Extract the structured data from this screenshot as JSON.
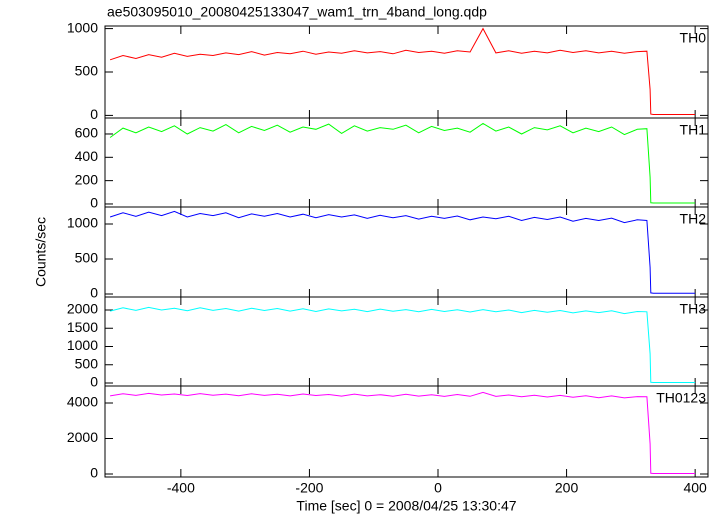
{
  "chart_data": [
    {
      "type": "line",
      "title": "ae503095010_20080425133047_wam1_trn_4band_long.qdp",
      "x": [
        -510,
        -490,
        -470,
        -450,
        -430,
        -410,
        -390,
        -370,
        -350,
        -330,
        -310,
        -290,
        -270,
        -250,
        -230,
        -210,
        -190,
        -170,
        -150,
        -130,
        -110,
        -90,
        -70,
        -50,
        -30,
        -10,
        10,
        30,
        50,
        70,
        90,
        110,
        130,
        150,
        170,
        190,
        210,
        230,
        250,
        270,
        290,
        310,
        325,
        330,
        331,
        335,
        400
      ],
      "series": [
        {
          "name": "TH0",
          "color": "#ff0000",
          "values": [
            640,
            690,
            655,
            700,
            670,
            715,
            680,
            705,
            690,
            720,
            700,
            735,
            695,
            725,
            710,
            740,
            705,
            730,
            715,
            745,
            720,
            735,
            710,
            750,
            725,
            740,
            715,
            745,
            730,
            1000,
            720,
            745,
            715,
            740,
            720,
            750,
            725,
            745,
            720,
            740,
            715,
            735,
            740,
            300,
            15,
            10,
            10
          ]
        }
      ],
      "xlim": [
        -518,
        420
      ],
      "ylim": [
        -30,
        1030
      ],
      "yticks": [
        0,
        500,
        1000
      ]
    },
    {
      "type": "line",
      "x": [
        -510,
        -490,
        -470,
        -450,
        -430,
        -410,
        -390,
        -370,
        -350,
        -330,
        -310,
        -290,
        -270,
        -250,
        -230,
        -210,
        -190,
        -170,
        -150,
        -130,
        -110,
        -90,
        -70,
        -50,
        -30,
        -10,
        10,
        30,
        50,
        70,
        90,
        110,
        130,
        150,
        170,
        190,
        210,
        230,
        250,
        270,
        290,
        310,
        325,
        330,
        331,
        335,
        400
      ],
      "series": [
        {
          "name": "TH1",
          "color": "#00ff00",
          "values": [
            570,
            650,
            610,
            660,
            620,
            670,
            600,
            655,
            625,
            680,
            610,
            665,
            630,
            675,
            615,
            660,
            640,
            685,
            605,
            670,
            625,
            655,
            640,
            675,
            610,
            665,
            630,
            650,
            615,
            690,
            625,
            660,
            600,
            655,
            635,
            670,
            610,
            650,
            620,
            660,
            595,
            640,
            645,
            230,
            10,
            8,
            8
          ]
        }
      ],
      "xlim": [
        -518,
        420
      ],
      "ylim": [
        -26,
        737
      ],
      "yticks": [
        0,
        200,
        400,
        600
      ]
    },
    {
      "type": "line",
      "ylabel": "Counts/sec",
      "x": [
        -510,
        -490,
        -470,
        -450,
        -430,
        -410,
        -390,
        -370,
        -350,
        -330,
        -310,
        -290,
        -270,
        -250,
        -230,
        -210,
        -190,
        -170,
        -150,
        -130,
        -110,
        -90,
        -70,
        -50,
        -30,
        -10,
        10,
        30,
        50,
        70,
        90,
        110,
        130,
        150,
        170,
        190,
        210,
        230,
        250,
        270,
        290,
        310,
        325,
        330,
        331,
        335,
        400
      ],
      "series": [
        {
          "name": "TH2",
          "color": "#0000ff",
          "values": [
            1100,
            1160,
            1110,
            1170,
            1120,
            1180,
            1100,
            1150,
            1120,
            1160,
            1090,
            1145,
            1110,
            1150,
            1100,
            1140,
            1090,
            1135,
            1100,
            1130,
            1080,
            1125,
            1090,
            1120,
            1070,
            1110,
            1080,
            1115,
            1060,
            1100,
            1075,
            1110,
            1050,
            1095,
            1065,
            1100,
            1040,
            1080,
            1050,
            1085,
            1020,
            1060,
            1050,
            380,
            15,
            10,
            10
          ]
        }
      ],
      "xlim": [
        -518,
        420
      ],
      "ylim": [
        -43,
        1243
      ],
      "yticks": [
        0,
        500,
        1000
      ]
    },
    {
      "type": "line",
      "x": [
        -510,
        -490,
        -470,
        -450,
        -430,
        -410,
        -390,
        -370,
        -350,
        -330,
        -310,
        -290,
        -270,
        -250,
        -230,
        -210,
        -190,
        -170,
        -150,
        -130,
        -110,
        -90,
        -70,
        -50,
        -30,
        -10,
        10,
        30,
        50,
        70,
        90,
        110,
        130,
        150,
        170,
        190,
        210,
        230,
        250,
        270,
        290,
        310,
        325,
        330,
        331,
        335,
        400
      ],
      "series": [
        {
          "name": "TH3",
          "color": "#00ffff",
          "values": [
            1970,
            2060,
            1990,
            2070,
            2000,
            2050,
            1980,
            2060,
            1990,
            2040,
            1970,
            2050,
            1985,
            2040,
            1970,
            2035,
            1960,
            2030,
            1975,
            2020,
            1955,
            2025,
            1965,
            2010,
            1950,
            2015,
            1960,
            2005,
            1945,
            2010,
            1950,
            2000,
            1930,
            1990,
            1940,
            1985,
            1920,
            1975,
            1930,
            1980,
            1900,
            1960,
            1950,
            800,
            20,
            15,
            15
          ]
        }
      ],
      "xlim": [
        -518,
        420
      ],
      "ylim": [
        -82,
        2356
      ],
      "yticks": [
        0,
        500,
        1000,
        1500,
        2000
      ]
    },
    {
      "type": "line",
      "xlabel": "Time [sec] 0 = 2008/04/25 13:30:47",
      "x": [
        -510,
        -490,
        -470,
        -450,
        -430,
        -410,
        -390,
        -370,
        -350,
        -330,
        -310,
        -290,
        -270,
        -250,
        -230,
        -210,
        -190,
        -170,
        -150,
        -130,
        -110,
        -90,
        -70,
        -50,
        -30,
        -10,
        10,
        30,
        50,
        70,
        90,
        110,
        130,
        150,
        170,
        190,
        210,
        230,
        250,
        270,
        290,
        310,
        325,
        330,
        331,
        335,
        400
      ],
      "series": [
        {
          "name": "TH0123",
          "color": "#ff00ff",
          "values": [
            4400,
            4520,
            4430,
            4540,
            4450,
            4510,
            4420,
            4530,
            4440,
            4500,
            4410,
            4520,
            4430,
            4490,
            4400,
            4510,
            4420,
            4480,
            4390,
            4500,
            4400,
            4470,
            4380,
            4490,
            4390,
            4460,
            4370,
            4480,
            4380,
            4600,
            4370,
            4450,
            4350,
            4440,
            4340,
            4430,
            4320,
            4410,
            4300,
            4400,
            4290,
            4360,
            4350,
            1700,
            40,
            30,
            30
          ]
        }
      ],
      "xlim": [
        -518,
        420
      ],
      "ylim": [
        -169,
        4958
      ],
      "yticks": [
        0,
        2000,
        4000
      ],
      "xticks": [
        -400,
        -200,
        0,
        200,
        400
      ]
    }
  ]
}
